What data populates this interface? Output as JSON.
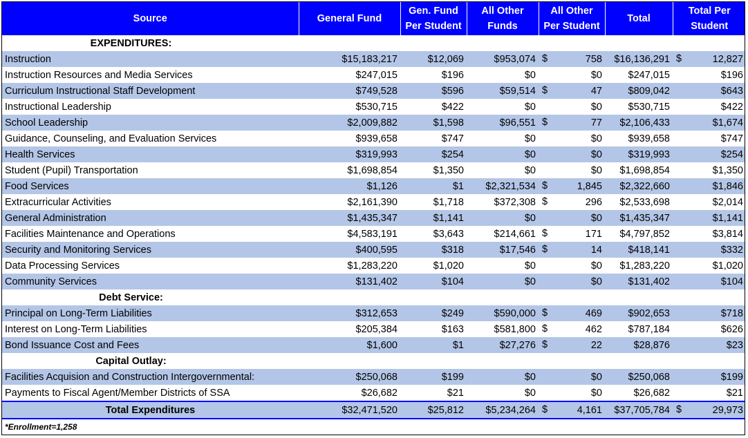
{
  "headers": {
    "source": "Source",
    "general_fund": "General Fund",
    "gen_fund_per_student_line1": "Gen. Fund",
    "gen_fund_per_student_line2": "Per Student",
    "all_other_funds_line1": "All Other",
    "all_other_funds_line2": "Funds",
    "all_other_per_student_line1": "All Other",
    "all_other_per_student_line2": "Per Student",
    "total": "Total",
    "total_per_student_line1": "Total Per",
    "total_per_student_line2": "Student"
  },
  "sections": {
    "expenditures": "EXPENDITURES:",
    "debt_service": "Debt Service:",
    "capital_outlay": "Capital Outlay:"
  },
  "expenditure_rows": [
    {
      "source": "Instruction",
      "general_fund": "$15,183,217",
      "gf_per_student": "$12,069",
      "all_other": "$953,074",
      "ao_cur": "$",
      "ao_per_student": "758",
      "total": "$16,136,291",
      "tot_cur": "$",
      "total_per_student": "12,827"
    },
    {
      "source": "Instruction Resources and Media Services",
      "general_fund": "$247,015",
      "gf_per_student": "$196",
      "all_other": "$0",
      "ao_cur": "",
      "ao_per_student": "$0",
      "total": "$247,015",
      "tot_cur": "",
      "total_per_student": "$196"
    },
    {
      "source": "Curriculum Instructional Staff Development",
      "general_fund": "$749,528",
      "gf_per_student": "$596",
      "all_other": "$59,514",
      "ao_cur": "$",
      "ao_per_student": "47",
      "total": "$809,042",
      "tot_cur": "",
      "total_per_student": "$643"
    },
    {
      "source": "Instructional Leadership",
      "general_fund": "$530,715",
      "gf_per_student": "$422",
      "all_other": "$0",
      "ao_cur": "",
      "ao_per_student": "$0",
      "total": "$530,715",
      "tot_cur": "",
      "total_per_student": "$422"
    },
    {
      "source": "School Leadership",
      "general_fund": "$2,009,882",
      "gf_per_student": "$1,598",
      "all_other": "$96,551",
      "ao_cur": "$",
      "ao_per_student": "77",
      "total": "$2,106,433",
      "tot_cur": "",
      "total_per_student": "$1,674"
    },
    {
      "source": "Guidance, Counseling, and Evaluation Services",
      "general_fund": "$939,658",
      "gf_per_student": "$747",
      "all_other": "$0",
      "ao_cur": "",
      "ao_per_student": "$0",
      "total": "$939,658",
      "tot_cur": "",
      "total_per_student": "$747"
    },
    {
      "source": "Health Services",
      "general_fund": "$319,993",
      "gf_per_student": "$254",
      "all_other": "$0",
      "ao_cur": "",
      "ao_per_student": "$0",
      "total": "$319,993",
      "tot_cur": "",
      "total_per_student": "$254"
    },
    {
      "source": "Student (Pupil) Transportation",
      "general_fund": "$1,698,854",
      "gf_per_student": "$1,350",
      "all_other": "$0",
      "ao_cur": "",
      "ao_per_student": "$0",
      "total": "$1,698,854",
      "tot_cur": "",
      "total_per_student": "$1,350"
    },
    {
      "source": "Food Services",
      "general_fund": "$1,126",
      "gf_per_student": "$1",
      "all_other": "$2,321,534",
      "ao_cur": "$",
      "ao_per_student": "1,845",
      "total": "$2,322,660",
      "tot_cur": "",
      "total_per_student": "$1,846"
    },
    {
      "source": "Extracurricular Activities",
      "general_fund": "$2,161,390",
      "gf_per_student": "$1,718",
      "all_other": "$372,308",
      "ao_cur": "$",
      "ao_per_student": "296",
      "total": "$2,533,698",
      "tot_cur": "",
      "total_per_student": "$2,014"
    },
    {
      "source": "General Administration",
      "general_fund": "$1,435,347",
      "gf_per_student": "$1,141",
      "all_other": "$0",
      "ao_cur": "",
      "ao_per_student": "$0",
      "total": "$1,435,347",
      "tot_cur": "",
      "total_per_student": "$1,141"
    },
    {
      "source": "Facilities Maintenance and Operations",
      "general_fund": "$4,583,191",
      "gf_per_student": "$3,643",
      "all_other": "$214,661",
      "ao_cur": "$",
      "ao_per_student": "171",
      "total": "$4,797,852",
      "tot_cur": "",
      "total_per_student": "$3,814"
    },
    {
      "source": "Security and Monitoring Services",
      "general_fund": "$400,595",
      "gf_per_student": "$318",
      "all_other": "$17,546",
      "ao_cur": "$",
      "ao_per_student": "14",
      "total": "$418,141",
      "tot_cur": "",
      "total_per_student": "$332"
    },
    {
      "source": "Data Processing Services",
      "general_fund": "$1,283,220",
      "gf_per_student": "$1,020",
      "all_other": "$0",
      "ao_cur": "",
      "ao_per_student": "$0",
      "total": "$1,283,220",
      "tot_cur": "",
      "total_per_student": "$1,020"
    },
    {
      "source": "Community Services",
      "general_fund": "$131,402",
      "gf_per_student": "$104",
      "all_other": "$0",
      "ao_cur": "",
      "ao_per_student": "$0",
      "total": "$131,402",
      "tot_cur": "",
      "total_per_student": "$104"
    }
  ],
  "debt_rows": [
    {
      "source": "Principal on Long-Term Liabilities",
      "general_fund": "$312,653",
      "gf_per_student": "$249",
      "all_other": "$590,000",
      "ao_cur": "$",
      "ao_per_student": "469",
      "total": "$902,653",
      "tot_cur": "",
      "total_per_student": "$718"
    },
    {
      "source": "Interest on Long-Term Liabilities",
      "general_fund": "$205,384",
      "gf_per_student": "$163",
      "all_other": "$581,800",
      "ao_cur": "$",
      "ao_per_student": "462",
      "total": "$787,184",
      "tot_cur": "",
      "total_per_student": "$626"
    },
    {
      "source": "Bond Issuance Cost and Fees",
      "general_fund": "$1,600",
      "gf_per_student": "$1",
      "all_other": "$27,276",
      "ao_cur": "$",
      "ao_per_student": "22",
      "total": "$28,876",
      "tot_cur": "",
      "total_per_student": "$23"
    }
  ],
  "capital_rows": [
    {
      "source": "Facilities Acquision and Construction Intergovernmental:",
      "general_fund": "$250,068",
      "gf_per_student": "$199",
      "all_other": "$0",
      "ao_cur": "",
      "ao_per_student": "$0",
      "total": "$250,068",
      "tot_cur": "",
      "total_per_student": "$199"
    },
    {
      "source": "Payments to Fiscal Agent/Member Districts of SSA",
      "general_fund": "$26,682",
      "gf_per_student": "$21",
      "all_other": "$0",
      "ao_cur": "",
      "ao_per_student": "$0",
      "total": "$26,682",
      "tot_cur": "",
      "total_per_student": "$21"
    }
  ],
  "total_row": {
    "source": "Total Expenditures",
    "general_fund": "$32,471,520",
    "gf_per_student": "$25,812",
    "all_other": "$5,234,264",
    "ao_cur": "$",
    "ao_per_student": "4,161",
    "total": "$37,705,784",
    "tot_cur": "$",
    "total_per_student": "29,973"
  },
  "footnote": "*Enrollment=1,258",
  "colors": {
    "header_bg": "#0000ff",
    "band": "#b4c6e7",
    "border_accent": "#0000ff"
  }
}
